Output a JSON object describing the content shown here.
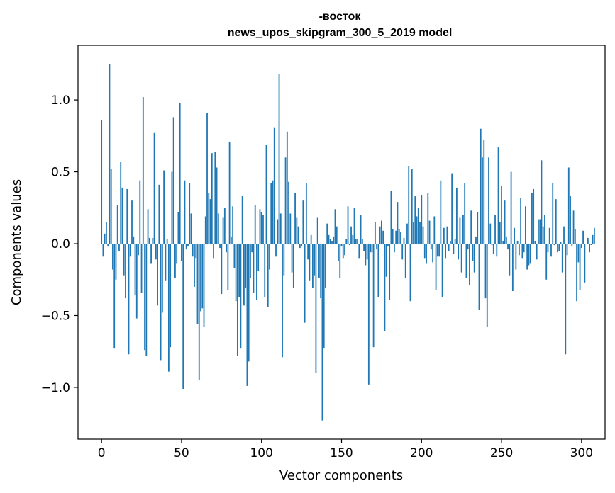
{
  "chart_data": {
    "type": "bar",
    "title": "-восток",
    "subtitle": "news_upos_skipgram_300_5_2019 model",
    "xlabel": "Vector components",
    "ylabel": "Components values",
    "xlim": [
      -14.7,
      314.7
    ],
    "ylim": [
      -1.36,
      1.38
    ],
    "xticks": [
      0,
      50,
      100,
      150,
      200,
      250,
      300
    ],
    "xtick_labels": [
      "0",
      "50",
      "100",
      "150",
      "200",
      "250",
      "300"
    ],
    "yticks": [
      -1.0,
      -0.5,
      0.0,
      0.5,
      1.0
    ],
    "ytick_labels": [
      "−1.0",
      "−0.5",
      "0.0",
      "0.5",
      "1.0"
    ],
    "bar_color": "#1f77b4",
    "grid": false,
    "values": [
      0.86,
      -0.09,
      0.07,
      0.15,
      -0.02,
      1.25,
      0.52,
      -0.18,
      -0.73,
      -0.25,
      0.27,
      -0.05,
      0.57,
      0.39,
      -0.22,
      -0.38,
      0.38,
      -0.77,
      -0.09,
      0.3,
      0.05,
      -0.36,
      -0.52,
      -0.08,
      0.44,
      -0.34,
      1.02,
      -0.74,
      -0.78,
      0.24,
      0.04,
      -0.14,
      0.04,
      0.77,
      -0.11,
      -0.43,
      0.41,
      -0.81,
      -0.48,
      0.51,
      -0.26,
      0.03,
      -0.89,
      -0.72,
      0.5,
      0.88,
      -0.24,
      -0.14,
      0.22,
      0.98,
      -0.12,
      -1.01,
      0.44,
      -0.04,
      -0.02,
      0.42,
      0.21,
      -0.09,
      -0.3,
      -0.1,
      -0.56,
      -0.95,
      -0.47,
      -0.45,
      -0.58,
      0.19,
      0.91,
      0.35,
      0.31,
      0.63,
      -0.1,
      0.64,
      0.53,
      0.21,
      -0.03,
      -0.35,
      0.18,
      0.25,
      -0.06,
      -0.32,
      0.71,
      0.05,
      0.26,
      -0.17,
      -0.4,
      -0.78,
      -0.37,
      -0.73,
      0.33,
      -0.43,
      -0.31,
      -0.99,
      -0.82,
      -0.24,
      -0.06,
      -0.34,
      0.27,
      -0.39,
      -0.19,
      0.24,
      0.22,
      0.2,
      -0.37,
      0.69,
      -0.44,
      -0.18,
      0.42,
      0.44,
      0.81,
      -0.09,
      0.17,
      1.18,
      0.21,
      -0.79,
      -0.22,
      0.6,
      0.78,
      0.43,
      0.21,
      -0.2,
      -0.31,
      0.35,
      0.18,
      0.12,
      -0.03,
      -0.02,
      0.3,
      -0.55,
      0.42,
      -0.11,
      -0.26,
      0.06,
      -0.31,
      -0.22,
      -0.9,
      0.18,
      -0.24,
      -0.38,
      -1.23,
      -0.73,
      -0.31,
      0.14,
      0.06,
      0.03,
      0.02,
      0.05,
      0.24,
      0.12,
      -0.12,
      -0.24,
      -0.02,
      -0.1,
      -0.08,
      0.03,
      0.26,
      -0.01,
      0.12,
      0.06,
      0.25,
      0.03,
      0.03,
      -0.1,
      0.2,
      0.03,
      -0.05,
      -0.15,
      -0.11,
      -0.98,
      -0.06,
      -0.06,
      -0.72,
      0.15,
      -0.04,
      -0.37,
      0.12,
      0.16,
      0.09,
      -0.61,
      -0.23,
      -0.02,
      -0.39,
      0.37,
      0.1,
      -0.06,
      0.09,
      0.29,
      0.1,
      0.08,
      -0.11,
      0.04,
      -0.24,
      0.14,
      0.54,
      -0.4,
      0.52,
      0.15,
      0.33,
      0.19,
      0.25,
      0.15,
      0.34,
      0.12,
      -0.1,
      -0.14,
      0.35,
      0.16,
      -0.04,
      -0.13,
      0.19,
      -0.32,
      -0.09,
      -0.09,
      0.44,
      -0.37,
      0.11,
      -0.1,
      0.12,
      -0.05,
      0.02,
      0.49,
      -0.07,
      0.03,
      0.39,
      -0.11,
      0.18,
      -0.2,
      0.2,
      0.42,
      -0.24,
      -0.04,
      -0.29,
      0.23,
      -0.12,
      -0.2,
      0.05,
      0.22,
      -0.46,
      0.8,
      0.6,
      0.72,
      -0.38,
      -0.58,
      0.6,
      0.14,
      -0.01,
      -0.07,
      0.2,
      -0.09,
      0.67,
      0.15,
      0.4,
      0.02,
      0.3,
      0.05,
      -0.04,
      -0.22,
      0.5,
      -0.33,
      0.11,
      -0.18,
      0.02,
      -0.08,
      0.32,
      -0.1,
      -0.06,
      0.26,
      -0.18,
      -0.15,
      -0.14,
      0.35,
      0.38,
      0.02,
      -0.11,
      0.17,
      0.17,
      0.58,
      0.12,
      0.2,
      -0.25,
      -0.06,
      0.11,
      -0.09,
      0.42,
      -0.01,
      0.31,
      -0.06,
      -0.05,
      0.01,
      -0.2,
      0.12,
      -0.77,
      -0.08,
      0.53,
      0.33,
      -0.02,
      0.23,
      0.1,
      -0.4,
      -0.13,
      -0.32,
      -0.03,
      0.09,
      -0.27,
      0.0,
      0.04,
      -0.06,
      -0.01,
      0.06,
      0.11
    ]
  }
}
